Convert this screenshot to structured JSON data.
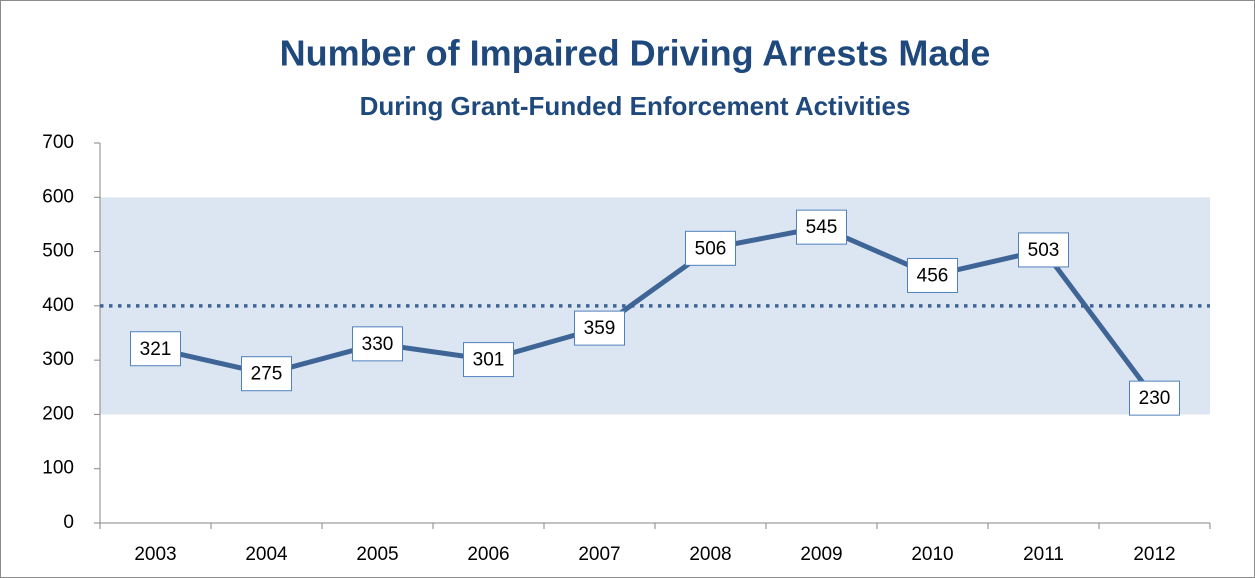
{
  "chart_data": {
    "type": "line",
    "title": "Number of Impaired Driving Arrests Made",
    "subtitle": "During Grant-Funded Enforcement Activities",
    "categories": [
      "2003",
      "2004",
      "2005",
      "2006",
      "2007",
      "2008",
      "2009",
      "2010",
      "2011",
      "2012"
    ],
    "values": [
      321,
      275,
      330,
      301,
      359,
      506,
      545,
      456,
      503,
      230
    ],
    "color": "#3f6597",
    "ylim": [
      0,
      700
    ],
    "yticks": [
      0,
      100,
      200,
      300,
      400,
      500,
      600,
      700
    ],
    "band": [
      200,
      600
    ],
    "band_color": "#dce6f2",
    "reference_line": 400
  }
}
